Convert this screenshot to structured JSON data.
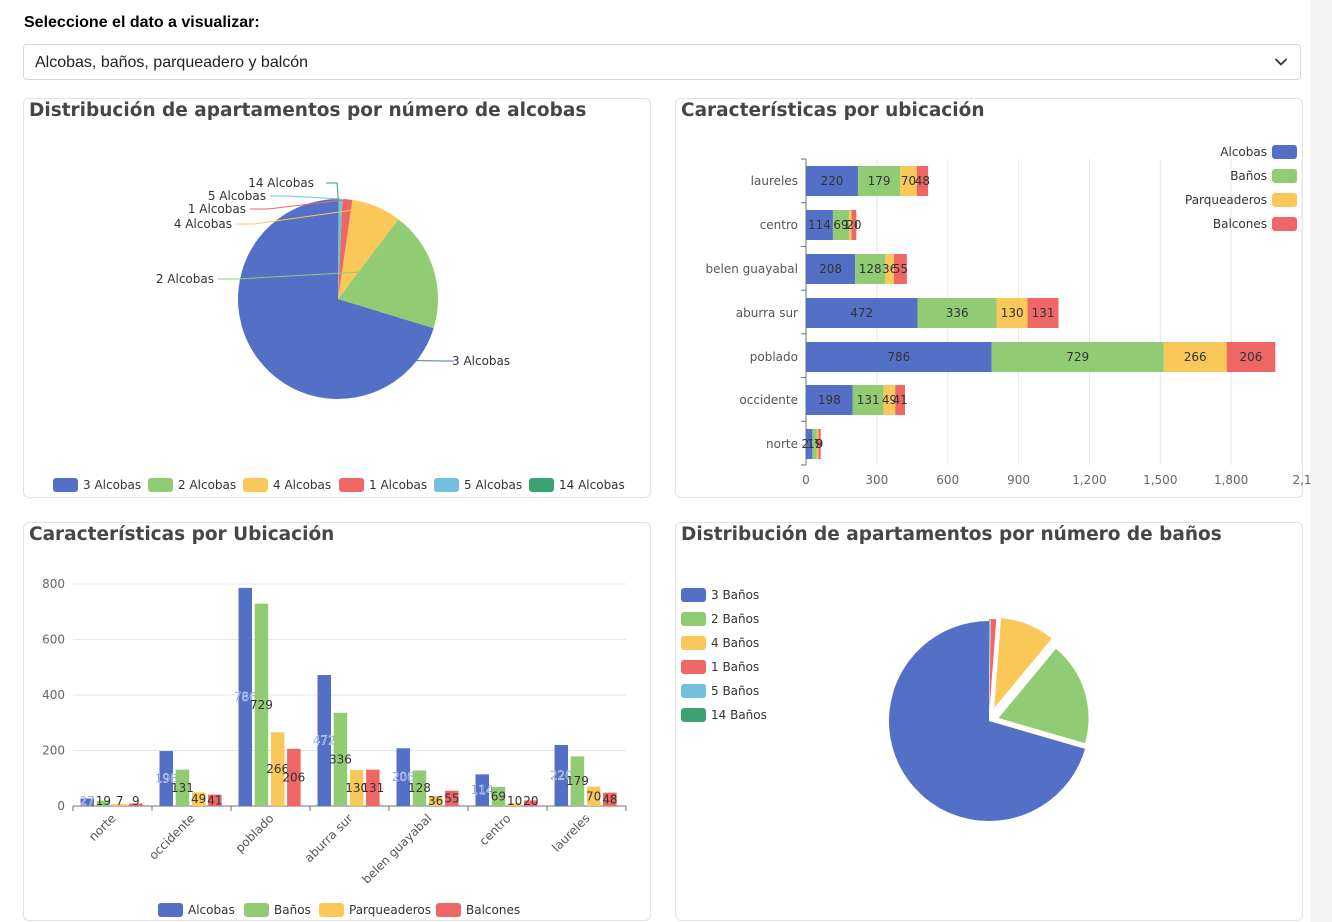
{
  "selector": {
    "label": "Seleccione el dato a visualizar:",
    "value": "Alcobas, baños, parqueadero y balcón",
    "icon": "chevron-down-icon"
  },
  "colors": {
    "blue": "#5470c6",
    "green": "#91cc75",
    "yellow": "#fac858",
    "red": "#ee6666",
    "lightblue": "#73c0de",
    "teal": "#3ba272"
  },
  "chart_data": [
    {
      "id": "pie-alcobas",
      "type": "pie",
      "title": "Distribución de apartamentos por número de alcobas",
      "labels": [
        "3 Alcobas",
        "2 Alcobas",
        "4 Alcobas",
        "1 Alcobas",
        "5 Alcobas",
        "14 Alcobas"
      ],
      "values": [
        70.3,
        19.4,
        8.0,
        1.6,
        0.6,
        0.1
      ],
      "colors": [
        "#5470c6",
        "#91cc75",
        "#fac858",
        "#ee6666",
        "#73c0de",
        "#3ba272"
      ],
      "legend": "bottom"
    },
    {
      "id": "hbar-ubicacion",
      "type": "bar",
      "orientation": "horizontal",
      "stacked": true,
      "title": "Características por ubicación",
      "categories": [
        "laureles",
        "centro",
        "belen guayabal",
        "aburra sur",
        "poblado",
        "occidente",
        "norte"
      ],
      "series": [
        {
          "name": "Alcobas",
          "values": [
            220,
            114,
            208,
            472,
            786,
            198,
            27
          ],
          "color": "#5470c6"
        },
        {
          "name": "Baños",
          "values": [
            179,
            69,
            128,
            336,
            729,
            131,
            19
          ],
          "color": "#91cc75"
        },
        {
          "name": "Parqueaderos",
          "values": [
            70,
            10,
            36,
            130,
            266,
            49,
            7
          ],
          "color": "#fac858"
        },
        {
          "name": "Balcones",
          "values": [
            48,
            20,
            55,
            131,
            206,
            41,
            9
          ],
          "color": "#ee6666"
        }
      ],
      "xticks": [
        "0",
        "300",
        "600",
        "900",
        "1,200",
        "1,500",
        "1,800",
        "2,1"
      ],
      "xlim": [
        0,
        2100
      ],
      "legend": "top-right"
    },
    {
      "id": "vbar-ubicacion",
      "type": "bar",
      "orientation": "vertical",
      "stacked": false,
      "title": "Características por Ubicación",
      "categories": [
        "norte",
        "occidente",
        "poblado",
        "aburra sur",
        "belen guayabal",
        "centro",
        "laureles"
      ],
      "series": [
        {
          "name": "Alcobas",
          "values": [
            27,
            198,
            786,
            472,
            208,
            114,
            220
          ],
          "color": "#5470c6"
        },
        {
          "name": "Baños",
          "values": [
            19,
            131,
            729,
            336,
            128,
            69,
            179
          ],
          "color": "#91cc75"
        },
        {
          "name": "Parqueaderos",
          "values": [
            7,
            49,
            266,
            130,
            36,
            10,
            70
          ],
          "color": "#fac858"
        },
        {
          "name": "Balcones",
          "values": [
            9,
            41,
            206,
            131,
            55,
            20,
            48
          ],
          "color": "#ee6666"
        }
      ],
      "yticks": [
        0,
        200,
        400,
        600,
        800
      ],
      "ylim": [
        0,
        800
      ],
      "legend": "bottom"
    },
    {
      "id": "pie-banos",
      "type": "pie",
      "title": "Distribución de apartamentos por número de baños",
      "labels": [
        "3 Baños",
        "2 Baños",
        "4 Baños",
        "1 Baños",
        "5 Baños",
        "14 Baños"
      ],
      "values": [
        70.5,
        18.5,
        9.8,
        1.0,
        0.15,
        0.05
      ],
      "colors": [
        "#5470c6",
        "#91cc75",
        "#fac858",
        "#ee6666",
        "#73c0de",
        "#3ba272"
      ],
      "legend": "top-left"
    }
  ]
}
